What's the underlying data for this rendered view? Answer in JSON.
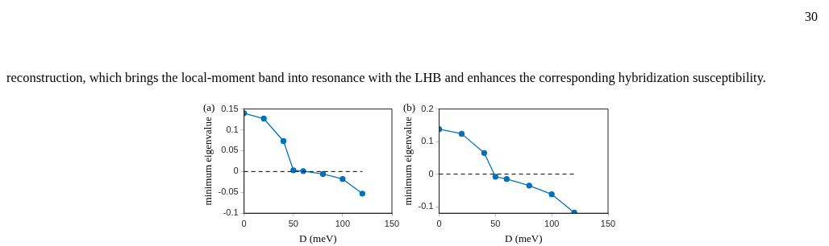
{
  "chart_data": [
    {
      "type": "line",
      "title": "(a)",
      "xlabel": "D (meV)",
      "ylabel": "minimum eigenvalue",
      "annotations": [
        "30",
        "reconstruction, which brings the local-moment band into resonance with the LHB and enhances the corresponding hybridization susceptibility."
      ],
      "x": [
        0,
        20,
        40,
        50,
        60,
        80,
        100,
        120
      ],
      "series": [
        {
          "color": "#0072bd",
          "values": [
            0.14,
            0.127,
            0.073,
            0.003,
            0.001,
            -0.006,
            -0.018,
            -0.053
          ]
        }
      ],
      "xlim": [
        0,
        150
      ],
      "xticks": [
        0,
        50,
        100,
        150
      ],
      "ylim": [
        -0.1,
        0.15
      ],
      "yticks": [
        -0.1,
        -0.05,
        0,
        0.05,
        0.1,
        0.15
      ],
      "grid": false,
      "legend": false,
      "marker": "circle",
      "line_style": "solid",
      "ref_lines": [
        {
          "axis": "y",
          "value": 0,
          "color": "#000000",
          "line_style": "dashed"
        }
      ]
    },
    {
      "type": "line",
      "title": "(b)",
      "xlabel": "D (meV)",
      "ylabel": "minimum eigenvalue",
      "x": [
        0,
        20,
        40,
        50,
        60,
        80,
        100,
        120
      ],
      "series": [
        {
          "color": "#0072bd",
          "values": [
            0.138,
            0.124,
            0.065,
            -0.008,
            -0.015,
            -0.035,
            -0.062,
            -0.118
          ]
        }
      ],
      "xlim": [
        0,
        150
      ],
      "xticks": [
        0,
        50,
        100,
        150
      ],
      "ylim": [
        -0.12,
        0.2
      ],
      "yticks": [
        -0.1,
        0,
        0.1,
        0.2
      ],
      "grid": false,
      "legend": false,
      "marker": "circle",
      "line_style": "solid",
      "ref_lines": [
        {
          "axis": "y",
          "value": 0,
          "color": "#000000",
          "line_style": "dashed"
        }
      ]
    }
  ]
}
